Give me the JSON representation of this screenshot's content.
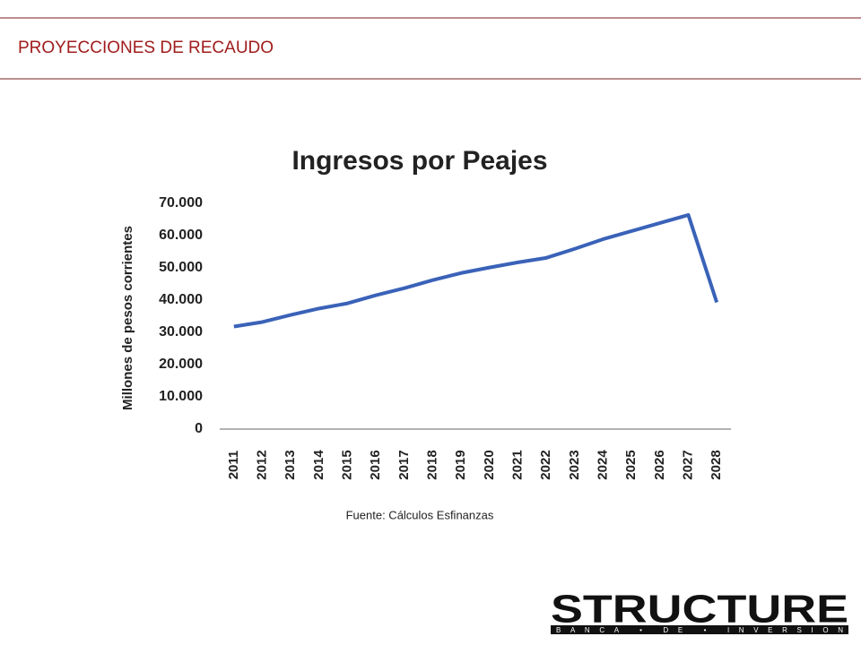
{
  "header": {
    "title": "PROYECCIONES DE RECAUDO"
  },
  "chart_data": {
    "type": "line",
    "title": "Ingresos por Peajes",
    "y_label": "Millones de pesos corrientes",
    "source": "Fuente: Cálculos Esfinanzas",
    "categories": [
      "2011",
      "2012",
      "2013",
      "2014",
      "2015",
      "2016",
      "2017",
      "2018",
      "2019",
      "2020",
      "2021",
      "2022",
      "2023",
      "2024",
      "2025",
      "2026",
      "2027",
      "2028"
    ],
    "values": [
      31800,
      33200,
      35400,
      37400,
      39000,
      41500,
      43700,
      46200,
      48400,
      50100,
      51700,
      53100,
      55900,
      58900,
      61400,
      63900,
      66400,
      39300
    ],
    "color": "#3a62b8",
    "ylim": [
      0,
      70000
    ],
    "yticks": [
      0,
      {
        "value": 10000,
        "label": "10.000"
      },
      {
        "value": 20000,
        "label": "20.000"
      },
      {
        "value": 30000,
        "label": "30.000"
      },
      {
        "value": 40000,
        "label": "40.000"
      },
      {
        "value": 50000,
        "label": "50.000"
      },
      {
        "value": 60000,
        "label": "60.000"
      },
      {
        "value": 70000,
        "label": "70.000"
      }
    ],
    "grid": false
  },
  "logo": {
    "name": "STRUCTURE",
    "tagline": "BANCA • DE • INVERSION"
  }
}
